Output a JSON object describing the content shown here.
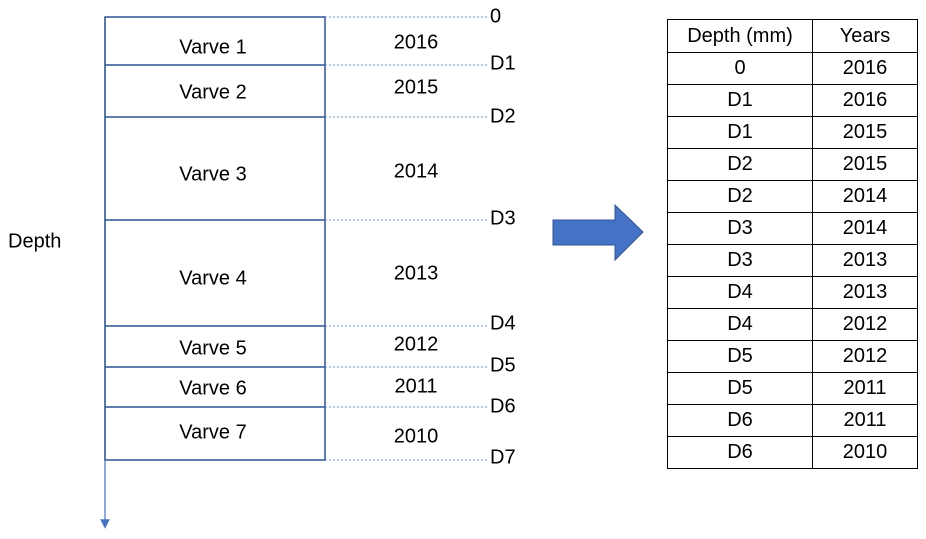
{
  "axis_label": "Depth",
  "varves": [
    {
      "label": "Varve 1",
      "year": "2016"
    },
    {
      "label": "Varve 2",
      "year": "2015"
    },
    {
      "label": "Varve 3",
      "year": "2014"
    },
    {
      "label": "Varve 4",
      "year": "2013"
    },
    {
      "label": "Varve 5",
      "year": "2012"
    },
    {
      "label": "Varve 6",
      "year": "2011"
    },
    {
      "label": "Varve 7",
      "year": "2010"
    }
  ],
  "depth_markers": [
    "0",
    "D1",
    "D2",
    "D3",
    "D4",
    "D5",
    "D6",
    "D7"
  ],
  "table": {
    "header": [
      "Depth (mm)",
      "Years"
    ],
    "rows": [
      [
        "0",
        "2016"
      ],
      [
        "D1",
        "2016"
      ],
      [
        "D1",
        "2015"
      ],
      [
        "D2",
        "2015"
      ],
      [
        "D2",
        "2014"
      ],
      [
        "D3",
        "2014"
      ],
      [
        "D3",
        "2013"
      ],
      [
        "D4",
        "2013"
      ],
      [
        "D4",
        "2012"
      ],
      [
        "D5",
        "2012"
      ],
      [
        "D5",
        "2011"
      ],
      [
        "D6",
        "2011"
      ],
      [
        "D6",
        "2010"
      ]
    ]
  }
}
